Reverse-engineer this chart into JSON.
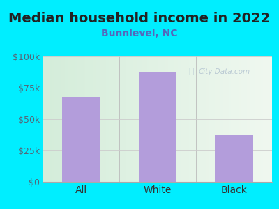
{
  "title": "Median household income in 2022",
  "subtitle": "Bunnlevel, NC",
  "categories": [
    "All",
    "White",
    "Black"
  ],
  "values": [
    68000,
    87000,
    37000
  ],
  "bar_color": "#b39ddb",
  "background_outer": "#00eeff",
  "background_inner_left": "#d4edda",
  "background_inner_right": "#f0f8f0",
  "title_color": "#222222",
  "subtitle_color": "#5566bb",
  "tick_color": "#556677",
  "xtick_color": "#333333",
  "watermark": "City-Data.com",
  "ylim": [
    0,
    100000
  ],
  "yticks": [
    0,
    25000,
    50000,
    75000,
    100000
  ],
  "ytick_labels": [
    "$0",
    "$25k",
    "$50k",
    "$75k",
    "$100k"
  ],
  "title_fontsize": 14,
  "subtitle_fontsize": 10,
  "bar_width": 0.5
}
